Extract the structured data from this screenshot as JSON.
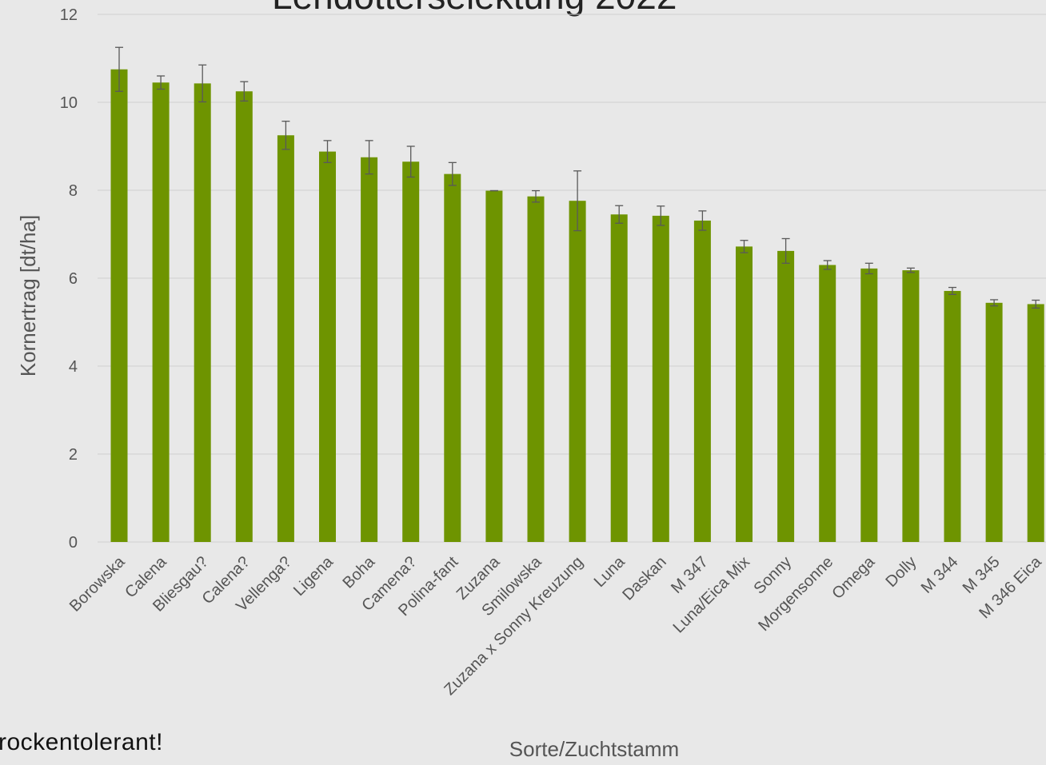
{
  "title_fragment": "Lendotterselektung 2022",
  "footnote_fragment": "rockentolerant!",
  "chart_data": {
    "type": "bar",
    "ylabel": "Kornertrag [dt/ha]",
    "xlabel": "Sorte/Zuchtstamm",
    "ylim": [
      0,
      12
    ],
    "y_ticks": [
      0,
      2,
      4,
      6,
      8,
      10,
      12
    ],
    "grid": "horizontal",
    "bar_color": "#6e9400",
    "categories": [
      "Borowska",
      "Calena",
      "Bliesgau?",
      "Calena?",
      "Vellenga?",
      "Ligena",
      "Boha",
      "Camena?",
      "Polina-fant",
      "Zuzana",
      "Smilowska",
      "Zuzana x Sonny Kreuzung",
      "Luna",
      "Daskan",
      "M 347",
      "Luna/Eica Mix",
      "Sonny",
      "Morgensonne",
      "Omega",
      "Dolly",
      "M 344",
      "M 345",
      "M 346 Eica"
    ],
    "values": [
      10.75,
      10.45,
      10.43,
      10.25,
      9.25,
      8.88,
      8.75,
      8.65,
      8.37,
      7.99,
      7.86,
      7.76,
      7.45,
      7.42,
      7.31,
      6.72,
      6.62,
      6.3,
      6.22,
      6.18,
      5.71,
      5.44,
      5.41
    ],
    "errors": [
      0.5,
      0.15,
      0.42,
      0.22,
      0.32,
      0.25,
      0.38,
      0.35,
      0.26,
      0.0,
      0.13,
      0.68,
      0.2,
      0.22,
      0.22,
      0.14,
      0.28,
      0.1,
      0.12,
      0.05,
      0.08,
      0.07,
      0.09
    ]
  }
}
